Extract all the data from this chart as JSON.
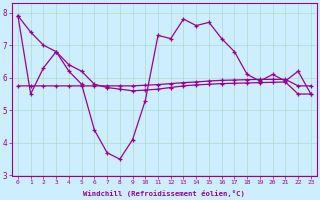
{
  "xlabel": "Windchill (Refroidissement éolien,°C)",
  "bg_color": "#cceeff",
  "line_color": "#990099",
  "grid_color": "#aaddcc",
  "hours": [
    0,
    1,
    2,
    3,
    4,
    5,
    6,
    7,
    8,
    9,
    10,
    11,
    12,
    13,
    14,
    15,
    16,
    17,
    18,
    19,
    20,
    21,
    22,
    23
  ],
  "series1": [
    7.9,
    5.5,
    6.3,
    6.8,
    6.2,
    5.8,
    4.4,
    3.7,
    3.5,
    4.1,
    5.3,
    7.3,
    7.2,
    7.8,
    7.6,
    7.7,
    7.2,
    6.8,
    6.1,
    5.9,
    6.1,
    5.9,
    6.2,
    5.5
  ],
  "series2": [
    5.75,
    5.75,
    5.75,
    5.75,
    5.75,
    5.75,
    5.75,
    5.75,
    5.75,
    5.75,
    5.77,
    5.79,
    5.82,
    5.85,
    5.87,
    5.9,
    5.92,
    5.93,
    5.94,
    5.95,
    5.95,
    5.95,
    5.75,
    5.75
  ],
  "series3": [
    7.9,
    7.4,
    7.0,
    6.8,
    6.4,
    6.2,
    5.8,
    5.7,
    5.65,
    5.6,
    5.62,
    5.65,
    5.7,
    5.75,
    5.78,
    5.8,
    5.82,
    5.83,
    5.84,
    5.85,
    5.86,
    5.87,
    5.5,
    5.5
  ],
  "xlim": [
    -0.5,
    23.5
  ],
  "ylim": [
    3.0,
    8.3
  ],
  "yticks": [
    3,
    4,
    5,
    6,
    7,
    8
  ],
  "xtick_fontsize": 4.5,
  "ytick_fontsize": 5.5,
  "xlabel_fontsize": 5.2
}
